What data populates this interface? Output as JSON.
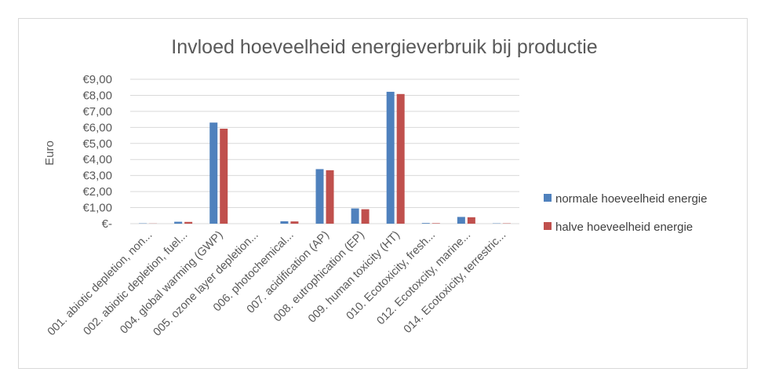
{
  "chart_data": {
    "type": "bar",
    "title": "Invloed hoeveelheid energieverbruik bij productie",
    "xlabel": "",
    "ylabel": "Euro",
    "ylim": [
      0,
      9
    ],
    "yticks": [
      {
        "value": 0,
        "label": "€-"
      },
      {
        "value": 1,
        "label": "€1,00"
      },
      {
        "value": 2,
        "label": "€2,00"
      },
      {
        "value": 3,
        "label": "€3,00"
      },
      {
        "value": 4,
        "label": "€4,00"
      },
      {
        "value": 5,
        "label": "€5,00"
      },
      {
        "value": 6,
        "label": "€6,00"
      },
      {
        "value": 7,
        "label": "€7,00"
      },
      {
        "value": 8,
        "label": "€8,00"
      },
      {
        "value": 9,
        "label": "€9,00"
      }
    ],
    "grid": true,
    "legend_position": "right",
    "categories": [
      "001. abiotic depletion, non...",
      "002. abiotic depletion, fuel...",
      "004. global warming (GWP)",
      "005. ozone layer depletion...",
      "006. photochemical...",
      "007. acidification (AP)",
      "008. eutrophication (EP)",
      "009. human toxicity (HT)",
      "010. Ecotoxicity, fresh...",
      "012. Ecotoxcity, marine...",
      "014. Ecotoxicity, terrestric..."
    ],
    "series": [
      {
        "name": "normale hoeveelheid energie",
        "color": "#4f81bd",
        "values": [
          0.02,
          0.12,
          6.3,
          0.0,
          0.15,
          3.4,
          0.95,
          8.22,
          0.04,
          0.42,
          0.02
        ]
      },
      {
        "name": "halve hoeveelheid energie",
        "color": "#c0504d",
        "values": [
          0.01,
          0.11,
          5.92,
          0.0,
          0.14,
          3.33,
          0.9,
          8.08,
          0.03,
          0.4,
          0.02
        ]
      }
    ]
  }
}
